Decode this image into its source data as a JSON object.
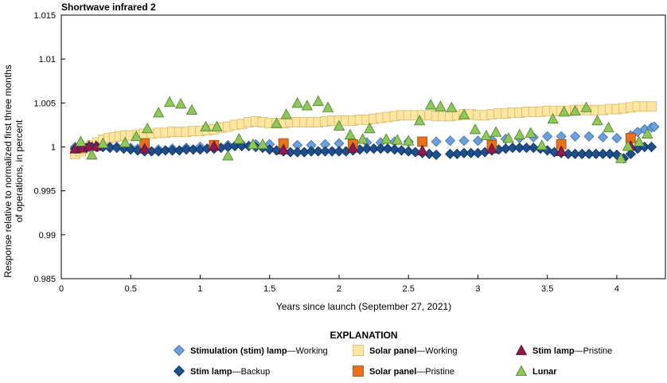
{
  "chart_data": {
    "type": "scatter",
    "title": "Shortwave infrared 2",
    "xlabel": "Years since launch (September 27, 2021)",
    "ylabel_lines": [
      "Response relative to normalized first three months",
      "of operations, in percent"
    ],
    "xlim": [
      0,
      4.35
    ],
    "ylim": [
      0.985,
      1.015
    ],
    "x_ticks": [
      "0",
      "0.5",
      "1",
      "1.5",
      "2",
      "2.5",
      "3",
      "3.5",
      "4"
    ],
    "y_ticks": [
      "0.985",
      "0.99",
      "0.995",
      "1",
      "1.005",
      "1.01",
      "1.015"
    ],
    "grid": false,
    "legend": {
      "title": "EXPLANATION",
      "placement": "bottom-center",
      "entries": [
        {
          "bold": "Stimulation (stim) lamp",
          "rest": "—Working",
          "series": "Stimulation (stim) lamp—Working"
        },
        {
          "bold": "Solar panel",
          "rest": "—Working",
          "series": "Solar panel—Working"
        },
        {
          "bold": "Stim lamp",
          "rest": "—Pristine",
          "series": "Stim lamp—Pristine"
        },
        {
          "bold": "Stim lamp",
          "rest": "—Backup",
          "series": "Stim lamp—Backup"
        },
        {
          "bold": "Solar panel",
          "rest": "—Pristine",
          "series": "Solar panel—Pristine"
        },
        {
          "bold": "Lunar",
          "rest": "",
          "series": "Lunar"
        }
      ]
    },
    "series": [
      {
        "name": "Solar panel—Working",
        "marker": "square",
        "fill": "#fde5a2",
        "stroke": "#d9b96a",
        "x": [
          0.1,
          0.14,
          0.18,
          0.22,
          0.26,
          0.3,
          0.34,
          0.38,
          0.42,
          0.46,
          0.5,
          0.55,
          0.6,
          0.65,
          0.7,
          0.75,
          0.8,
          0.85,
          0.9,
          0.95,
          1.0,
          1.05,
          1.1,
          1.15,
          1.2,
          1.25,
          1.3,
          1.35,
          1.4,
          1.45,
          1.5,
          1.55,
          1.6,
          1.65,
          1.7,
          1.75,
          1.8,
          1.85,
          1.9,
          1.95,
          2.0,
          2.05,
          2.1,
          2.15,
          2.2,
          2.25,
          2.3,
          2.35,
          2.4,
          2.45,
          2.5,
          2.55,
          2.6,
          2.65,
          2.7,
          2.75,
          2.8,
          2.85,
          2.9,
          2.95,
          3.0,
          3.05,
          3.1,
          3.15,
          3.2,
          3.25,
          3.3,
          3.35,
          3.4,
          3.45,
          3.5,
          3.55,
          3.6,
          3.65,
          3.7,
          3.75,
          3.8,
          3.85,
          3.9,
          3.95,
          4.0,
          4.05,
          4.1,
          4.15,
          4.2,
          4.25
        ],
        "y": [
          0.9992,
          0.9995,
          0.9998,
          1.0002,
          1.0005,
          1.0008,
          1.001,
          1.0011,
          1.0012,
          1.0013,
          1.0013,
          1.0014,
          1.0015,
          1.0015,
          1.0016,
          1.0016,
          1.0017,
          1.0017,
          1.0017,
          1.0018,
          1.0018,
          1.0019,
          1.002,
          1.0022,
          1.0023,
          1.0025,
          1.0026,
          1.0028,
          1.0029,
          1.0028,
          1.0027,
          1.0027,
          1.0027,
          1.0028,
          1.0028,
          1.0028,
          1.0028,
          1.0028,
          1.0029,
          1.003,
          1.003,
          1.003,
          1.003,
          1.0031,
          1.0031,
          1.0032,
          1.0033,
          1.0034,
          1.0035,
          1.0036,
          1.0036,
          1.0036,
          1.0036,
          1.0036,
          1.0035,
          1.0035,
          1.0035,
          1.0036,
          1.0037,
          1.0037,
          1.0036,
          1.0036,
          1.0037,
          1.0038,
          1.0038,
          1.0039,
          1.0039,
          1.004,
          1.004,
          1.004,
          1.0041,
          1.0041,
          1.0041,
          1.0041,
          1.0042,
          1.0042,
          1.0042,
          1.0042,
          1.0042,
          1.0043,
          1.0043,
          1.0044,
          1.0045,
          1.0046,
          1.0046,
          1.0046
        ]
      },
      {
        "name": "Stimulation (stim) lamp—Working",
        "marker": "diamond",
        "fill": "#6f9fd8",
        "stroke": "#3b6fb0",
        "x": [
          0.1,
          0.15,
          0.2,
          0.25,
          0.3,
          0.35,
          0.4,
          0.45,
          0.5,
          0.55,
          0.6,
          0.7,
          0.8,
          0.9,
          1.0,
          1.1,
          1.2,
          1.3,
          1.4,
          1.5,
          1.6,
          1.7,
          1.8,
          1.9,
          2.0,
          2.1,
          2.2,
          2.3,
          2.4,
          2.5,
          2.6,
          2.7,
          2.8,
          2.9,
          3.0,
          3.1,
          3.2,
          3.3,
          3.4,
          3.5,
          3.6,
          3.7,
          3.8,
          3.9,
          4.0,
          4.1,
          4.15,
          4.2,
          4.25,
          4.27
        ],
        "y": [
          1.0,
          1.0,
          1.0,
          1.0,
          1.0,
          1.0,
          1.0,
          1.0,
          0.9999,
          0.9998,
          0.9997,
          0.9997,
          0.9998,
          0.9999,
          1.0,
          1.0001,
          1.0002,
          1.0003,
          1.0003,
          1.0003,
          1.0002,
          1.0002,
          1.0002,
          1.0003,
          1.0004,
          1.0004,
          1.0005,
          1.0005,
          1.0006,
          1.0006,
          1.0006,
          1.0006,
          1.0007,
          1.0007,
          1.0007,
          1.0008,
          1.0009,
          1.001,
          1.0011,
          1.0012,
          1.0012,
          1.0012,
          1.0012,
          1.0011,
          1.001,
          1.0013,
          1.0017,
          1.002,
          1.0022,
          1.0023
        ]
      },
      {
        "name": "Stim lamp—Backup",
        "marker": "diamond",
        "fill": "#1e4e8c",
        "stroke": "#0f2f5c",
        "x": [
          0.1,
          0.14,
          0.18,
          0.22,
          0.26,
          0.3,
          0.35,
          0.4,
          0.45,
          0.5,
          0.55,
          0.6,
          0.65,
          0.7,
          0.75,
          0.8,
          0.85,
          0.9,
          0.95,
          1.0,
          1.05,
          1.1,
          1.15,
          1.2,
          1.25,
          1.3,
          1.35,
          1.4,
          1.45,
          1.5,
          1.55,
          1.6,
          1.65,
          1.7,
          1.75,
          1.8,
          1.85,
          1.9,
          1.95,
          2.0,
          2.05,
          2.1,
          2.15,
          2.2,
          2.25,
          2.3,
          2.35,
          2.4,
          2.45,
          2.5,
          2.55,
          2.6,
          2.65,
          2.7,
          2.8,
          2.85,
          2.9,
          2.95,
          3.0,
          3.05,
          3.1,
          3.15,
          3.2,
          3.25,
          3.3,
          3.35,
          3.4,
          3.45,
          3.5,
          3.55,
          3.6,
          3.65,
          3.7,
          3.75,
          3.8,
          3.85,
          3.9,
          3.95,
          4.0,
          4.05,
          4.1,
          4.15,
          4.2,
          4.25
        ],
        "y": [
          0.9998,
          0.9999,
          0.9999,
          1.0,
          1.0,
          1.0,
          0.9999,
          0.9999,
          0.9998,
          0.9997,
          0.9996,
          0.9995,
          0.9995,
          0.9995,
          0.9996,
          0.9996,
          0.9996,
          0.9997,
          0.9997,
          0.9997,
          0.9998,
          0.9998,
          0.9999,
          1.0,
          1.0001,
          1.0001,
          1.0001,
          1.0,
          0.9999,
          0.9997,
          0.9996,
          0.9995,
          0.9994,
          0.9994,
          0.9994,
          0.9995,
          0.9995,
          0.9995,
          0.9995,
          0.9995,
          0.9995,
          0.9996,
          0.9997,
          0.9998,
          0.9998,
          0.9998,
          0.9998,
          0.9997,
          0.9996,
          0.9995,
          0.9994,
          0.9993,
          0.9992,
          0.9991,
          0.9992,
          0.9992,
          0.9993,
          0.9993,
          0.9993,
          0.9994,
          0.9996,
          0.9997,
          0.9998,
          0.9999,
          0.9999,
          0.9999,
          0.9999,
          0.9998,
          0.9996,
          0.9994,
          0.9993,
          0.9992,
          0.9992,
          0.9992,
          0.9992,
          0.9992,
          0.9992,
          0.9992,
          0.9991,
          0.9987,
          0.9992,
          0.9998,
          1.0,
          1.0
        ]
      },
      {
        "name": "Solar panel—Pristine",
        "marker": "square",
        "fill": "#e8711f",
        "stroke": "#a44c10",
        "x": [
          0.6,
          1.1,
          1.6,
          2.1,
          2.6,
          3.1,
          3.6,
          4.1
        ],
        "y": [
          1.0004,
          1.0002,
          1.0004,
          1.0003,
          1.0006,
          1.0002,
          1.0003,
          1.001
        ]
      },
      {
        "name": "Stim lamp—Pristine",
        "marker": "triangle",
        "fill": "#8c1a4c",
        "stroke": "#5c0f30",
        "x": [
          0.1,
          0.15,
          0.2,
          0.25,
          0.6,
          1.1,
          1.6,
          2.1,
          2.6,
          3.1,
          3.6,
          4.1
        ],
        "y": [
          0.9998,
          0.9999,
          1.0001,
          1.0001,
          0.9998,
          1.0001,
          0.9997,
          0.9999,
          0.9996,
          0.9998,
          0.9995,
          1.0001
        ]
      },
      {
        "name": "Lunar",
        "marker": "triangle",
        "fill": "#8fc75a",
        "stroke": "#4f7f2a",
        "x": [
          0.14,
          0.22,
          0.3,
          0.46,
          0.54,
          0.62,
          0.7,
          0.78,
          0.86,
          0.94,
          1.04,
          1.12,
          1.2,
          1.28,
          1.38,
          1.45,
          1.55,
          1.62,
          1.7,
          1.77,
          1.85,
          1.92,
          2.0,
          2.08,
          2.17,
          2.22,
          2.34,
          2.42,
          2.5,
          2.58,
          2.66,
          2.73,
          2.81,
          2.9,
          2.98,
          3.06,
          3.13,
          3.22,
          3.3,
          3.38,
          3.46,
          3.54,
          3.62,
          3.7,
          3.78,
          3.86,
          3.94,
          4.03,
          4.08,
          4.16,
          4.22
        ],
        "y": [
          1.0006,
          0.9991,
          1.0004,
          1.0005,
          1.0012,
          1.0021,
          1.0039,
          1.0051,
          1.0049,
          1.0042,
          1.0023,
          1.0023,
          0.999,
          1.0009,
          1.0003,
          1.0003,
          1.0027,
          1.0037,
          1.005,
          1.0047,
          1.0052,
          1.0045,
          1.0024,
          1.0014,
          1.0009,
          1.0021,
          1.0009,
          1.0008,
          1.0007,
          1.003,
          1.0048,
          1.0046,
          1.0045,
          1.0037,
          1.002,
          1.0013,
          1.0017,
          1.001,
          1.0014,
          1.0016,
          1.0002,
          1.0032,
          1.004,
          1.0041,
          1.0045,
          1.003,
          1.0022,
          0.9987,
          1.0001,
          1.0006,
          1.0015
        ]
      }
    ]
  }
}
